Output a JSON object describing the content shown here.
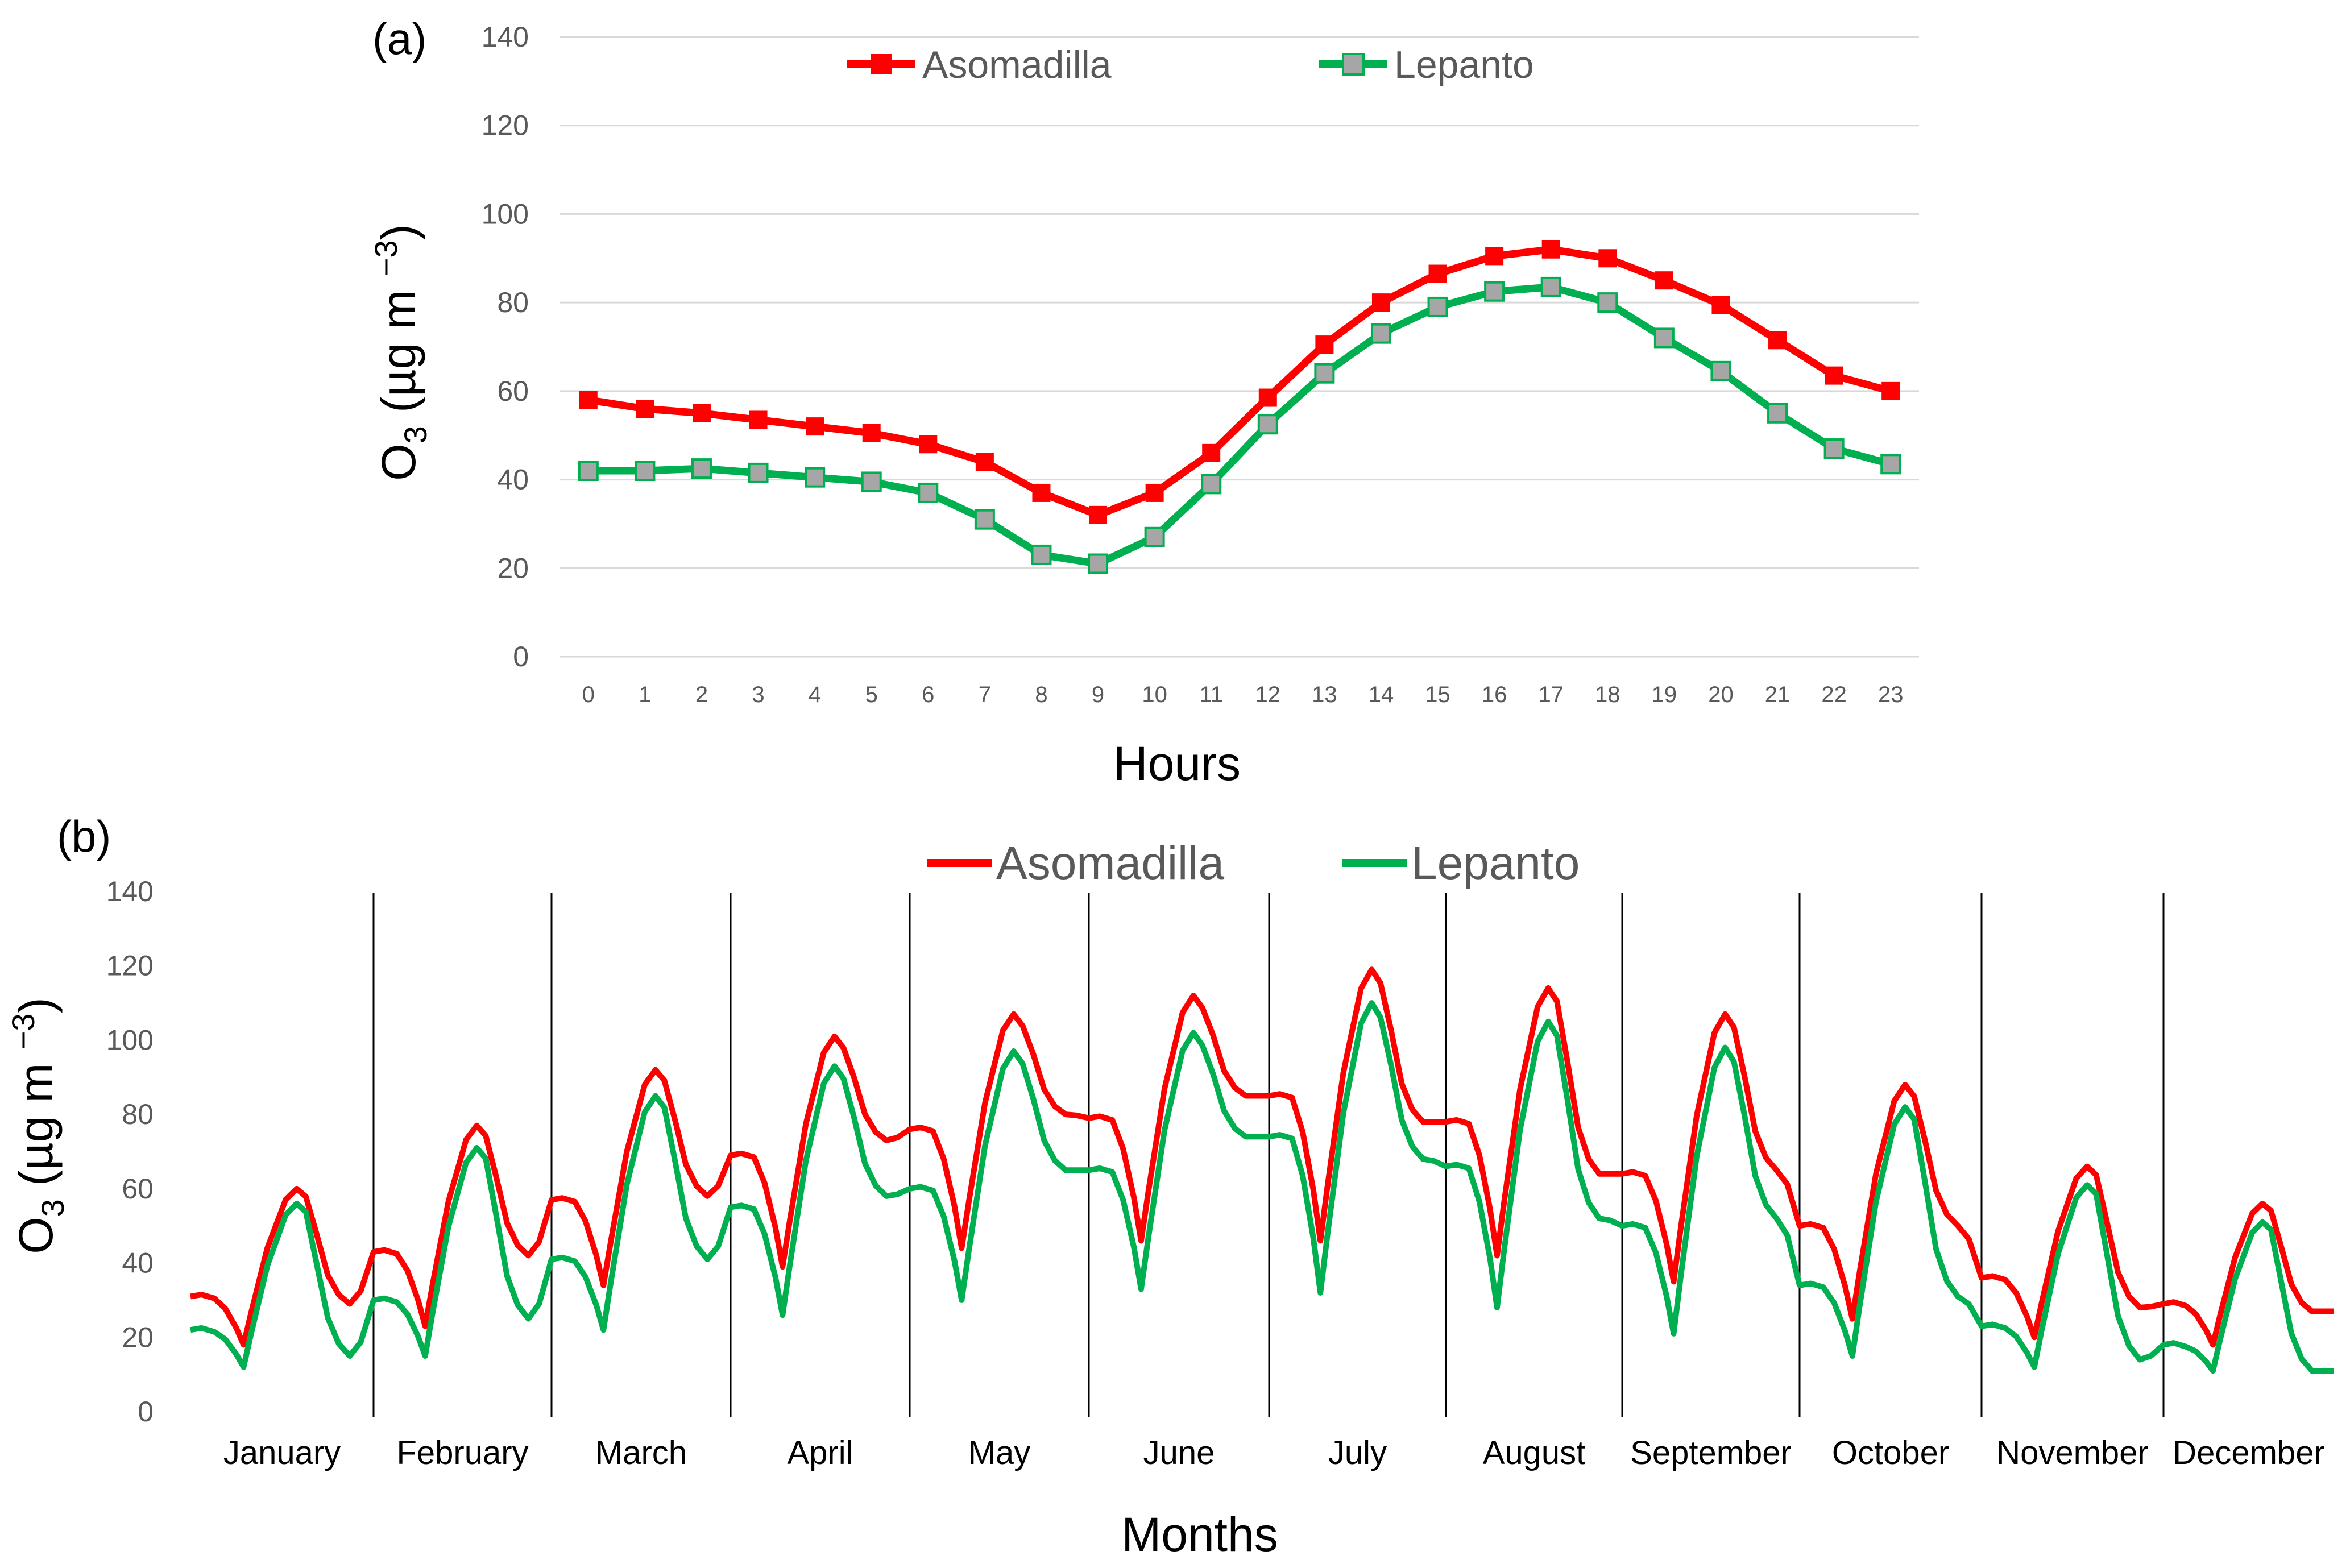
{
  "chart_data": [
    {
      "type": "line",
      "panel_label": "(a)",
      "xlabel": "Hours",
      "ylabel": "O3 (µg m −3)",
      "ylabel_main": "O",
      "ylabel_sub": "3",
      "ylabel_rest": " (µg m ",
      "ylabel_sup": "−3",
      "ylabel_close": ")",
      "ylim": [
        0,
        140
      ],
      "yticks": [
        0,
        20,
        40,
        60,
        80,
        100,
        120,
        140
      ],
      "grid": true,
      "legend_position": "top",
      "x": [
        0,
        1,
        2,
        3,
        4,
        5,
        6,
        7,
        8,
        9,
        10,
        11,
        12,
        13,
        14,
        15,
        16,
        17,
        18,
        19,
        20,
        21,
        22,
        23
      ],
      "series": [
        {
          "name": "Asomadilla",
          "color": "#ff0000",
          "marker": "square",
          "values": [
            58,
            56,
            55,
            53.5,
            52,
            50.5,
            48,
            44,
            37,
            32,
            37,
            46,
            58.5,
            70.5,
            80,
            86.5,
            90.5,
            92,
            90,
            85,
            79.5,
            71.5,
            63.5,
            60
          ]
        },
        {
          "name": "Lepanto",
          "color": "#00b050",
          "marker_fill": "#a6a6a6",
          "values": [
            42,
            42,
            42.5,
            41.5,
            40.5,
            39.5,
            37,
            31,
            23,
            21,
            27,
            39,
            52.5,
            64,
            73,
            79,
            82.5,
            83.5,
            80,
            72,
            64.5,
            55,
            47,
            43.5
          ]
        }
      ]
    },
    {
      "type": "line",
      "panel_label": "(b)",
      "xlabel": "Months",
      "ylabel": "O3 (µg m −3)",
      "ylabel_main": "O",
      "ylabel_sub": "3",
      "ylabel_rest": " (µg m ",
      "ylabel_sup": "−3",
      "ylabel_close": ")",
      "ylim": [
        0,
        140
      ],
      "yticks": [
        0,
        20,
        40,
        60,
        80,
        100,
        120,
        140
      ],
      "grid": false,
      "legend_position": "top",
      "categories": [
        "January",
        "February",
        "March",
        "April",
        "May",
        "June",
        "July",
        "August",
        "September",
        "October",
        "November",
        "December"
      ],
      "series": [
        {
          "name": "Asomadilla",
          "color": "#ff0000",
          "monthly": [
            {
              "night": 31,
              "min": 18,
              "peak": 60,
              "end": 29
            },
            {
              "night": 43,
              "min": 23,
              "peak": 77,
              "end": 42
            },
            {
              "night": 57,
              "min": 34,
              "peak": 92,
              "end": 58
            },
            {
              "night": 69,
              "min": 39,
              "peak": 101,
              "end": 73
            },
            {
              "night": 76,
              "min": 44,
              "peak": 107,
              "end": 80
            },
            {
              "night": 79,
              "min": 46,
              "peak": 112,
              "end": 85
            },
            {
              "night": 85,
              "min": 46,
              "peak": 119,
              "end": 78
            },
            {
              "night": 78,
              "min": 42,
              "peak": 114,
              "end": 64
            },
            {
              "night": 64,
              "min": 35,
              "peak": 107,
              "end": 65
            },
            {
              "night": 50,
              "min": 25,
              "peak": 88,
              "end": 50
            },
            {
              "night": 36,
              "min": 20,
              "peak": 66,
              "end": 28
            },
            {
              "night": 29,
              "min": 18,
              "peak": 56,
              "end": 27
            }
          ]
        },
        {
          "name": "Lepanto",
          "color": "#00b050",
          "monthly": [
            {
              "night": 22,
              "min": 12,
              "peak": 56,
              "end": 15
            },
            {
              "night": 30,
              "min": 15,
              "peak": 71,
              "end": 25
            },
            {
              "night": 41,
              "min": 22,
              "peak": 85,
              "end": 41
            },
            {
              "night": 55,
              "min": 26,
              "peak": 93,
              "end": 58
            },
            {
              "night": 60,
              "min": 30,
              "peak": 97,
              "end": 65
            },
            {
              "night": 65,
              "min": 33,
              "peak": 102,
              "end": 74
            },
            {
              "night": 74,
              "min": 32,
              "peak": 110,
              "end": 68
            },
            {
              "night": 66,
              "min": 28,
              "peak": 105,
              "end": 52
            },
            {
              "night": 50,
              "min": 21,
              "peak": 98,
              "end": 52
            },
            {
              "night": 34,
              "min": 15,
              "peak": 82,
              "end": 31
            },
            {
              "night": 23,
              "min": 12,
              "peak": 61,
              "end": 14
            },
            {
              "night": 18,
              "min": 11,
              "peak": 51,
              "end": 11
            }
          ]
        }
      ]
    }
  ]
}
